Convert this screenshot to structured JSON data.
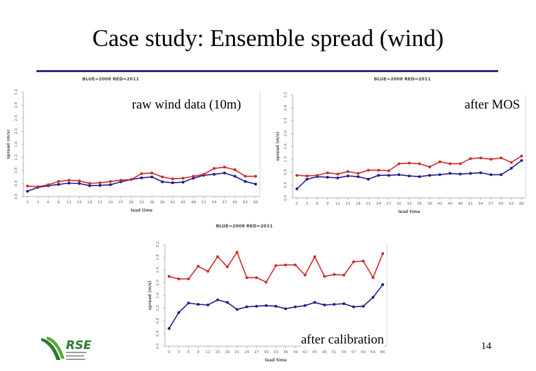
{
  "slide": {
    "title": "Case study: Ensemble spread (wind)",
    "page_number": "14"
  },
  "logo": {
    "text": "RSE",
    "icon": "rse-logo-icon",
    "color": "#2b7a2b"
  },
  "captions": [
    "raw wind data (10m)",
    "after MOS",
    "after calibration"
  ],
  "colors": {
    "blue": "#1c1c8c",
    "red": "#cc2a2a",
    "rule": "#2b2b8a"
  },
  "chart_data": [
    {
      "type": "line",
      "legend_text": "BLUE=2008  RED=2011",
      "xlabel": "lead time",
      "ylabel": "spread (m/s)",
      "x": [
        "0",
        "3",
        "6",
        "9",
        "12",
        "15",
        "18",
        "21",
        "24",
        "27",
        "30",
        "33",
        "36",
        "39",
        "42",
        "45",
        "48",
        "51",
        "54",
        "57",
        "60",
        "63",
        "66"
      ],
      "yticks": [
        "0.0",
        "0.4",
        "0.8",
        "1.2",
        "1.6",
        "2.0",
        "2.4",
        "2.8",
        "3.2"
      ],
      "ylim": [
        0,
        3.2
      ],
      "series": [
        {
          "name": "BLUE=2008",
          "color": "#1c1c8c",
          "values": [
            0.16,
            0.28,
            0.33,
            0.37,
            0.41,
            0.4,
            0.33,
            0.34,
            0.36,
            0.45,
            0.52,
            0.57,
            0.6,
            0.45,
            0.42,
            0.44,
            0.56,
            0.65,
            0.68,
            0.72,
            0.62,
            0.46,
            0.38
          ]
        },
        {
          "name": "RED=2011",
          "color": "#cc2a2a",
          "values": [
            0.32,
            0.3,
            0.36,
            0.46,
            0.5,
            0.48,
            0.4,
            0.42,
            0.46,
            0.5,
            0.52,
            0.7,
            0.72,
            0.6,
            0.54,
            0.56,
            0.62,
            0.68,
            0.86,
            0.9,
            0.82,
            0.62,
            0.62
          ]
        }
      ]
    },
    {
      "type": "line",
      "legend_text": "BLUE=2008  RED=2011",
      "xlabel": "lead time",
      "ylabel": "spread (m/s)",
      "x": [
        "0",
        "3",
        "6",
        "9",
        "12",
        "15",
        "18",
        "21",
        "24",
        "27",
        "30",
        "33",
        "36",
        "39",
        "42",
        "45",
        "48",
        "51",
        "54",
        "57",
        "60",
        "63",
        "66"
      ],
      "yticks": [
        "0.0",
        "0.4",
        "0.8",
        "1.2",
        "1.6",
        "2.0",
        "2.4",
        "2.8",
        "3.2"
      ],
      "ylim": [
        0,
        3.2
      ],
      "series": [
        {
          "name": "BLUE=2008",
          "color": "#1c1c8c",
          "values": [
            0.28,
            0.58,
            0.66,
            0.64,
            0.62,
            0.68,
            0.66,
            0.58,
            0.7,
            0.7,
            0.72,
            0.68,
            0.66,
            0.7,
            0.72,
            0.76,
            0.74,
            0.76,
            0.78,
            0.72,
            0.72,
            0.92,
            1.16
          ]
        },
        {
          "name": "RED=2011",
          "color": "#cc2a2a",
          "values": [
            0.7,
            0.68,
            0.7,
            0.78,
            0.74,
            0.82,
            0.76,
            0.86,
            0.86,
            0.84,
            1.06,
            1.08,
            1.06,
            0.96,
            1.12,
            1.06,
            1.06,
            1.22,
            1.24,
            1.2,
            1.24,
            1.1,
            1.3
          ]
        }
      ]
    },
    {
      "type": "line",
      "legend_text": "BLUE=2008  RED=2011",
      "xlabel": "lead time",
      "ylabel": "spread (m/s)",
      "x": [
        "0",
        "3",
        "6",
        "9",
        "12",
        "15",
        "18",
        "21",
        "24",
        "27",
        "30",
        "33",
        "36",
        "39",
        "42",
        "45",
        "48",
        "51",
        "54",
        "57",
        "60",
        "63",
        "66"
      ],
      "yticks": [
        "0.0",
        "0.4",
        "0.8",
        "1.2",
        "1.6",
        "2.0",
        "2.4",
        "2.8",
        "3.2"
      ],
      "ylim": [
        0,
        3.2
      ],
      "series": [
        {
          "name": "BLUE=2008",
          "color": "#1c1c8c",
          "values": [
            0.56,
            1.06,
            1.36,
            1.32,
            1.3,
            1.46,
            1.38,
            1.16,
            1.24,
            1.26,
            1.28,
            1.26,
            1.18,
            1.24,
            1.28,
            1.38,
            1.3,
            1.32,
            1.34,
            1.24,
            1.26,
            1.54,
            1.94
          ]
        },
        {
          "name": "RED=2011",
          "color": "#cc2a2a",
          "values": [
            2.2,
            2.12,
            2.12,
            2.52,
            2.36,
            2.82,
            2.5,
            2.96,
            2.16,
            2.16,
            2.02,
            2.54,
            2.56,
            2.56,
            2.24,
            2.82,
            2.2,
            2.26,
            2.24,
            2.66,
            2.68,
            2.16,
            2.92
          ]
        }
      ]
    }
  ]
}
